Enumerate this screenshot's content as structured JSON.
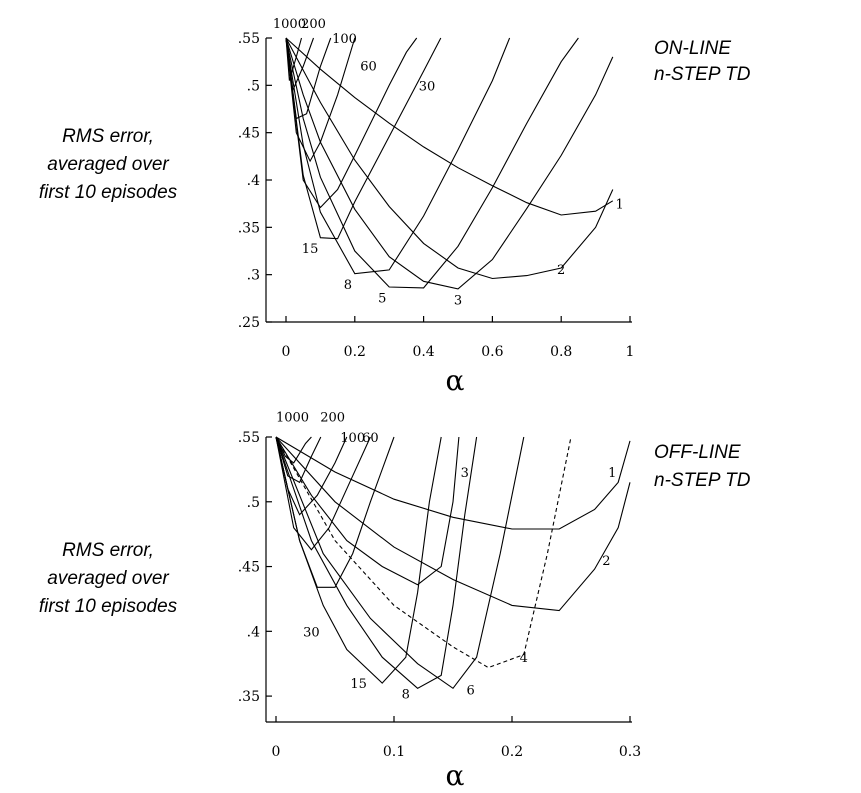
{
  "chart_data": [
    {
      "type": "line",
      "title": [
        "ON-LINE",
        "n-STEP TD"
      ],
      "ylabel": [
        "RMS error,",
        "averaged over",
        "first 10 episodes"
      ],
      "xlabel": "α",
      "xlim": [
        0,
        1
      ],
      "ylim": [
        0.25,
        0.55
      ],
      "xticks": [
        0,
        0.2,
        0.4,
        0.6,
        0.8,
        1
      ],
      "xtick_labels": [
        "0",
        "0.2",
        "0.4",
        "0.6",
        "0.8",
        "1"
      ],
      "yticks": [
        0.25,
        0.3,
        0.35,
        0.4,
        0.45,
        0.5,
        0.55
      ],
      "ytick_labels": [
        ".25",
        ".3",
        ".35",
        ".4",
        ".45",
        ".5",
        ".55"
      ],
      "series": [
        {
          "name": "1",
          "label_at": [
            0.97,
            0.375
          ],
          "points": [
            [
              0,
              0.55
            ],
            [
              0.1,
              0.517
            ],
            [
              0.2,
              0.487
            ],
            [
              0.3,
              0.46
            ],
            [
              0.4,
              0.435
            ],
            [
              0.5,
              0.413
            ],
            [
              0.6,
              0.394
            ],
            [
              0.7,
              0.376
            ],
            [
              0.8,
              0.363
            ],
            [
              0.9,
              0.367
            ],
            [
              0.95,
              0.378
            ]
          ]
        },
        {
          "name": "2",
          "label_at": [
            0.8,
            0.306
          ],
          "points": [
            [
              0,
              0.55
            ],
            [
              0.1,
              0.482
            ],
            [
              0.2,
              0.421
            ],
            [
              0.3,
              0.372
            ],
            [
              0.4,
              0.333
            ],
            [
              0.5,
              0.307
            ],
            [
              0.6,
              0.296
            ],
            [
              0.7,
              0.299
            ],
            [
              0.8,
              0.307
            ],
            [
              0.9,
              0.35
            ],
            [
              0.95,
              0.39
            ]
          ]
        },
        {
          "name": "3",
          "label_at": [
            0.5,
            0.274
          ],
          "points": [
            [
              0,
              0.55
            ],
            [
              0.05,
              0.49
            ],
            [
              0.1,
              0.44
            ],
            [
              0.2,
              0.369
            ],
            [
              0.3,
              0.319
            ],
            [
              0.4,
              0.293
            ],
            [
              0.5,
              0.285
            ],
            [
              0.6,
              0.316
            ],
            [
              0.7,
              0.37
            ],
            [
              0.8,
              0.426
            ],
            [
              0.9,
              0.49
            ],
            [
              0.95,
              0.53
            ]
          ]
        },
        {
          "name": "5",
          "label_at": [
            0.28,
            0.276
          ],
          "points": [
            [
              0,
              0.55
            ],
            [
              0.05,
              0.465
            ],
            [
              0.1,
              0.403
            ],
            [
              0.2,
              0.325
            ],
            [
              0.3,
              0.287
            ],
            [
              0.4,
              0.286
            ],
            [
              0.5,
              0.33
            ],
            [
              0.6,
              0.392
            ],
            [
              0.7,
              0.46
            ],
            [
              0.8,
              0.525
            ],
            [
              0.85,
              0.55
            ]
          ]
        },
        {
          "name": "8",
          "label_at": [
            0.18,
            0.29
          ],
          "points": [
            [
              0,
              0.55
            ],
            [
              0.05,
              0.437
            ],
            [
              0.1,
              0.366
            ],
            [
              0.2,
              0.301
            ],
            [
              0.3,
              0.305
            ],
            [
              0.4,
              0.362
            ],
            [
              0.5,
              0.432
            ],
            [
              0.6,
              0.505
            ],
            [
              0.65,
              0.55
            ]
          ]
        },
        {
          "name": "15",
          "label_at": [
            0.07,
            0.328
          ],
          "points": [
            [
              0,
              0.55
            ],
            [
              0.05,
              0.405
            ],
            [
              0.1,
              0.339
            ],
            [
              0.15,
              0.338
            ],
            [
              0.2,
              0.377
            ],
            [
              0.3,
              0.446
            ],
            [
              0.4,
              0.515
            ],
            [
              0.45,
              0.55
            ]
          ]
        },
        {
          "name": "30",
          "label_at": [
            0.41,
            0.5
          ],
          "points": [
            [
              0,
              0.55
            ],
            [
              0.05,
              0.4
            ],
            [
              0.1,
              0.371
            ],
            [
              0.15,
              0.39
            ],
            [
              0.2,
              0.426
            ],
            [
              0.3,
              0.5
            ],
            [
              0.35,
              0.535
            ],
            [
              0.38,
              0.55
            ]
          ]
        },
        {
          "name": "60",
          "label_at": [
            0.24,
            0.521
          ],
          "points": [
            [
              0,
              0.55
            ],
            [
              0.03,
              0.45
            ],
            [
              0.07,
              0.42
            ],
            [
              0.1,
              0.44
            ],
            [
              0.15,
              0.49
            ],
            [
              0.2,
              0.55
            ]
          ]
        },
        {
          "name": "100",
          "label_at": [
            0.17,
            0.55
          ],
          "points": [
            [
              0,
              0.55
            ],
            [
              0.03,
              0.465
            ],
            [
              0.06,
              0.47
            ],
            [
              0.1,
              0.52
            ],
            [
              0.13,
              0.55
            ]
          ]
        },
        {
          "name": "200",
          "label_at": [
            0.08,
            0.566
          ],
          "points": [
            [
              0,
              0.55
            ],
            [
              0.02,
              0.495
            ],
            [
              0.05,
              0.52
            ],
            [
              0.08,
              0.55
            ]
          ]
        },
        {
          "name": "1000",
          "label_at": [
            0.01,
            0.566
          ],
          "points": [
            [
              0,
              0.55
            ],
            [
              0.01,
              0.505
            ],
            [
              0.03,
              0.53
            ],
            [
              0.045,
              0.55
            ]
          ]
        }
      ]
    },
    {
      "type": "line",
      "title": [
        "OFF-LINE",
        "n-STEP TD"
      ],
      "ylabel": [
        "RMS error,",
        "averaged over",
        "first 10 episodes"
      ],
      "xlabel": "α",
      "xlim": [
        0,
        0.3
      ],
      "ylim": [
        0.33,
        0.55
      ],
      "xticks": [
        0,
        0.1,
        0.2,
        0.3
      ],
      "xtick_labels": [
        "0",
        "0.1",
        "0.2",
        "0.3"
      ],
      "yticks": [
        0.35,
        0.4,
        0.45,
        0.5,
        0.55
      ],
      "ytick_labels": [
        ".35",
        ".4",
        ".45",
        ".5",
        ".55"
      ],
      "series": [
        {
          "name": "1",
          "label_at": [
            0.285,
            0.523
          ],
          "points": [
            [
              0,
              0.55
            ],
            [
              0.05,
              0.523
            ],
            [
              0.1,
              0.502
            ],
            [
              0.15,
              0.488
            ],
            [
              0.2,
              0.479
            ],
            [
              0.24,
              0.479
            ],
            [
              0.27,
              0.494
            ],
            [
              0.29,
              0.515
            ],
            [
              0.3,
              0.547
            ]
          ]
        },
        {
          "name": "2",
          "label_at": [
            0.28,
            0.455
          ],
          "points": [
            [
              0,
              0.55
            ],
            [
              0.05,
              0.5
            ],
            [
              0.1,
              0.465
            ],
            [
              0.15,
              0.44
            ],
            [
              0.2,
              0.42
            ],
            [
              0.24,
              0.416
            ],
            [
              0.27,
              0.448
            ],
            [
              0.29,
              0.48
            ],
            [
              0.3,
              0.515
            ]
          ]
        },
        {
          "name": "3",
          "label_at": [
            0.16,
            0.523
          ],
          "points": [
            [
              0,
              0.55
            ],
            [
              0.03,
              0.505
            ],
            [
              0.06,
              0.47
            ],
            [
              0.09,
              0.45
            ],
            [
              0.12,
              0.436
            ],
            [
              0.14,
              0.45
            ],
            [
              0.15,
              0.5
            ],
            [
              0.155,
              0.55
            ]
          ]
        },
        {
          "name": "4",
          "label_at": [
            0.21,
            0.38
          ],
          "dashed": true,
          "points": [
            [
              0,
              0.55
            ],
            [
              0.05,
              0.47
            ],
            [
              0.1,
              0.42
            ],
            [
              0.15,
              0.388
            ],
            [
              0.18,
              0.372
            ],
            [
              0.21,
              0.382
            ],
            [
              0.23,
              0.46
            ],
            [
              0.25,
              0.55
            ]
          ]
        },
        {
          "name": "6",
          "label_at": [
            0.165,
            0.355
          ],
          "points": [
            [
              0,
              0.55
            ],
            [
              0.04,
              0.46
            ],
            [
              0.08,
              0.41
            ],
            [
              0.12,
              0.375
            ],
            [
              0.15,
              0.356
            ],
            [
              0.17,
              0.38
            ],
            [
              0.19,
              0.46
            ],
            [
              0.21,
              0.55
            ]
          ]
        },
        {
          "name": "8",
          "label_at": [
            0.11,
            0.352
          ],
          "points": [
            [
              0,
              0.55
            ],
            [
              0.03,
              0.47
            ],
            [
              0.06,
              0.42
            ],
            [
              0.09,
              0.38
            ],
            [
              0.12,
              0.356
            ],
            [
              0.14,
              0.366
            ],
            [
              0.15,
              0.42
            ],
            [
              0.16,
              0.49
            ],
            [
              0.17,
              0.55
            ]
          ]
        },
        {
          "name": "15",
          "label_at": [
            0.07,
            0.36
          ],
          "points": [
            [
              0,
              0.55
            ],
            [
              0.02,
              0.47
            ],
            [
              0.04,
              0.42
            ],
            [
              0.06,
              0.386
            ],
            [
              0.09,
              0.36
            ],
            [
              0.11,
              0.38
            ],
            [
              0.12,
              0.43
            ],
            [
              0.13,
              0.5
            ],
            [
              0.14,
              0.55
            ]
          ]
        },
        {
          "name": "30",
          "label_at": [
            0.03,
            0.4
          ],
          "points": [
            [
              0,
              0.55
            ],
            [
              0.02,
              0.47
            ],
            [
              0.035,
              0.434
            ],
            [
              0.05,
              0.434
            ],
            [
              0.065,
              0.46
            ],
            [
              0.08,
              0.5
            ],
            [
              0.1,
              0.55
            ]
          ]
        },
        {
          "name": "60",
          "label_at": [
            0.08,
            0.55
          ],
          "points": [
            [
              0,
              0.55
            ],
            [
              0.015,
              0.48
            ],
            [
              0.03,
              0.463
            ],
            [
              0.045,
              0.48
            ],
            [
              0.06,
              0.51
            ],
            [
              0.08,
              0.55
            ]
          ]
        },
        {
          "name": "100",
          "label_at": [
            0.065,
            0.55
          ],
          "points": [
            [
              0,
              0.55
            ],
            [
              0.01,
              0.51
            ],
            [
              0.02,
              0.49
            ],
            [
              0.035,
              0.505
            ],
            [
              0.05,
              0.53
            ],
            [
              0.06,
              0.55
            ]
          ]
        },
        {
          "name": "200",
          "label_at": [
            0.048,
            0.566
          ],
          "points": [
            [
              0,
              0.55
            ],
            [
              0.01,
              0.52
            ],
            [
              0.02,
              0.515
            ],
            [
              0.03,
              0.535
            ],
            [
              0.038,
              0.55
            ]
          ]
        },
        {
          "name": "1000",
          "label_at": [
            0.014,
            0.566
          ],
          "points": [
            [
              0,
              0.55
            ],
            [
              0.008,
              0.535
            ],
            [
              0.015,
              0.53
            ],
            [
              0.025,
              0.545
            ],
            [
              0.03,
              0.55
            ]
          ]
        }
      ]
    }
  ]
}
